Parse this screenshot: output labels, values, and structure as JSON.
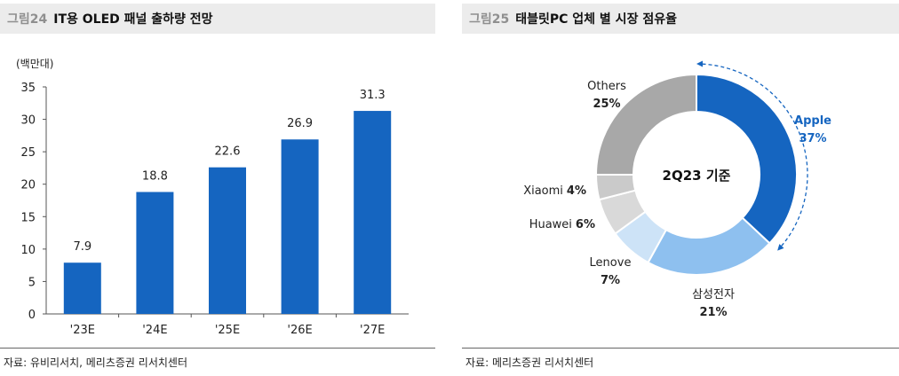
{
  "figure_left": {
    "number": "그림24",
    "title": "IT용 OLED 패널 출하량 전망",
    "unit": "(백만대)",
    "source": "자료: 유비리서치, 메리츠증권 리서치센터"
  },
  "figure_right": {
    "number": "그림25",
    "title": "태블릿PC 업체 별 시장 점유율",
    "center_label": "2Q23 기준",
    "source": "자료: 메리츠증권 리서치센터"
  },
  "chart_data": [
    {
      "type": "bar",
      "title": "IT용 OLED 패널 출하량 전망",
      "ylabel": "(백만대)",
      "categories": [
        "'23E",
        "'24E",
        "'25E",
        "'26E",
        "'27E"
      ],
      "values": [
        7.9,
        18.8,
        22.6,
        26.9,
        31.3
      ],
      "value_labels": [
        "7.9",
        "18.8",
        "22.6",
        "26.9",
        "31.3"
      ],
      "ylim": [
        0,
        35
      ],
      "yticks": [
        0,
        5,
        10,
        15,
        20,
        25,
        30,
        35
      ],
      "grid": false,
      "colors": {
        "bar": "#1565c0"
      }
    },
    {
      "type": "pie",
      "title": "태블릿PC 업체 별 시장 점유율",
      "donut": true,
      "center_text": "2Q23 기준",
      "slices": [
        {
          "label": "Apple",
          "value": 37,
          "pct": "37%",
          "color": "#1565c0"
        },
        {
          "label": "삼성전자",
          "value": 21,
          "pct": "21%",
          "color": "#8ec0ef"
        },
        {
          "label": "Lenove",
          "value": 7,
          "pct": "7%",
          "color": "#cde3f7"
        },
        {
          "label": "Huawei",
          "value": 6,
          "pct": "6%",
          "color": "#d9d9d9"
        },
        {
          "label": "Xiaomi",
          "value": 4,
          "pct": "4%",
          "color": "#cacaca"
        },
        {
          "label": "Others",
          "value": 25,
          "pct": "25%",
          "color": "#a8a8a8"
        }
      ]
    }
  ]
}
